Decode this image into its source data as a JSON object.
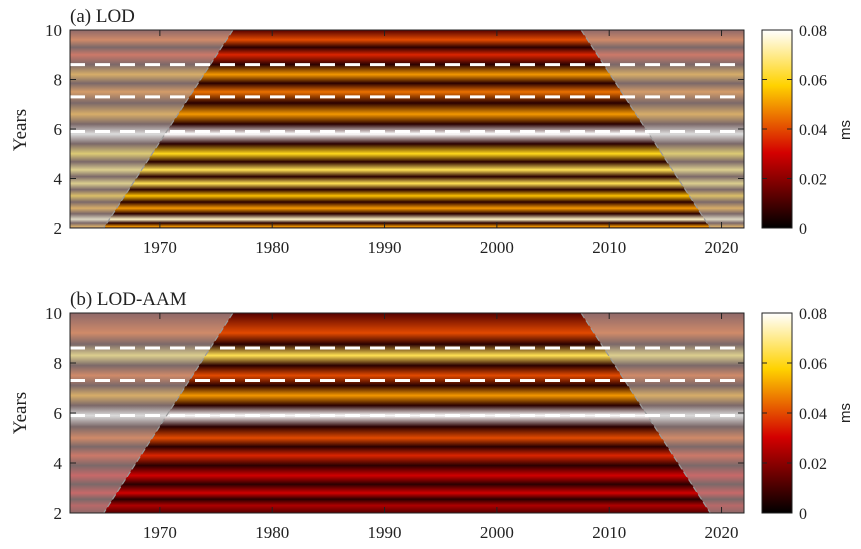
{
  "chart_data": [
    {
      "type": "heatmap",
      "title": "(a) LOD",
      "xlabel": "",
      "ylabel": "Years",
      "xlim": [
        1962,
        2022
      ],
      "ylim": [
        2,
        10
      ],
      "xticks": [
        1970,
        1980,
        1990,
        2000,
        2010,
        2020
      ],
      "yticks": [
        2,
        4,
        6,
        8,
        10
      ],
      "dashed_periods": [
        5.9,
        7.3,
        8.6
      ],
      "cone_of_influence": {
        "left_bottom": 1965,
        "left_top": 1976.5,
        "right_top": 2007.5,
        "right_bottom": 2019
      },
      "colorbar": {
        "label": "ms",
        "range": [
          0,
          0.08
        ],
        "ticks": [
          0,
          0.02,
          0.04,
          0.06,
          0.08
        ],
        "colormap": "hot"
      },
      "bands": [
        {
          "period": 2.05,
          "amplitude": 0.05
        },
        {
          "period": 2.35,
          "amplitude": 0.075
        },
        {
          "period": 2.8,
          "amplitude": 0.05
        },
        {
          "period": 3.3,
          "amplitude": 0.055
        },
        {
          "period": 3.8,
          "amplitude": 0.065
        },
        {
          "period": 4.35,
          "amplitude": 0.065
        },
        {
          "period": 5.0,
          "amplitude": 0.06
        },
        {
          "period": 5.8,
          "amplitude": 0.08
        },
        {
          "period": 6.6,
          "amplitude": 0.05
        },
        {
          "period": 7.5,
          "amplitude": 0.045
        },
        {
          "period": 8.2,
          "amplitude": 0.05
        },
        {
          "period": 9.0,
          "amplitude": 0.035
        },
        {
          "period": 9.6,
          "amplitude": 0.04
        }
      ]
    },
    {
      "type": "heatmap",
      "title": "(b) LOD-AAM",
      "xlabel": "",
      "ylabel": "Years",
      "xlim": [
        1962,
        2022
      ],
      "ylim": [
        2,
        10
      ],
      "xticks": [
        1970,
        1980,
        1990,
        2000,
        2010,
        2020
      ],
      "yticks": [
        2,
        4,
        6,
        8,
        10
      ],
      "dashed_periods": [
        5.9,
        7.3,
        8.6
      ],
      "cone_of_influence": {
        "left_bottom": 1965,
        "left_top": 1976.5,
        "right_top": 2007.5,
        "right_bottom": 2019
      },
      "colorbar": {
        "label": "ms",
        "range": [
          0,
          0.08
        ],
        "ticks": [
          0,
          0.02,
          0.04,
          0.06,
          0.08
        ],
        "colormap": "hot"
      },
      "bands": [
        {
          "period": 2.3,
          "amplitude": 0.025
        },
        {
          "period": 2.8,
          "amplitude": 0.03
        },
        {
          "period": 3.5,
          "amplitude": 0.03
        },
        {
          "period": 4.3,
          "amplitude": 0.035
        },
        {
          "period": 5.0,
          "amplitude": 0.04
        },
        {
          "period": 5.9,
          "amplitude": 0.08
        },
        {
          "period": 6.7,
          "amplitude": 0.05
        },
        {
          "period": 7.5,
          "amplitude": 0.04
        },
        {
          "period": 8.3,
          "amplitude": 0.065
        },
        {
          "period": 9.2,
          "amplitude": 0.04
        }
      ]
    }
  ]
}
